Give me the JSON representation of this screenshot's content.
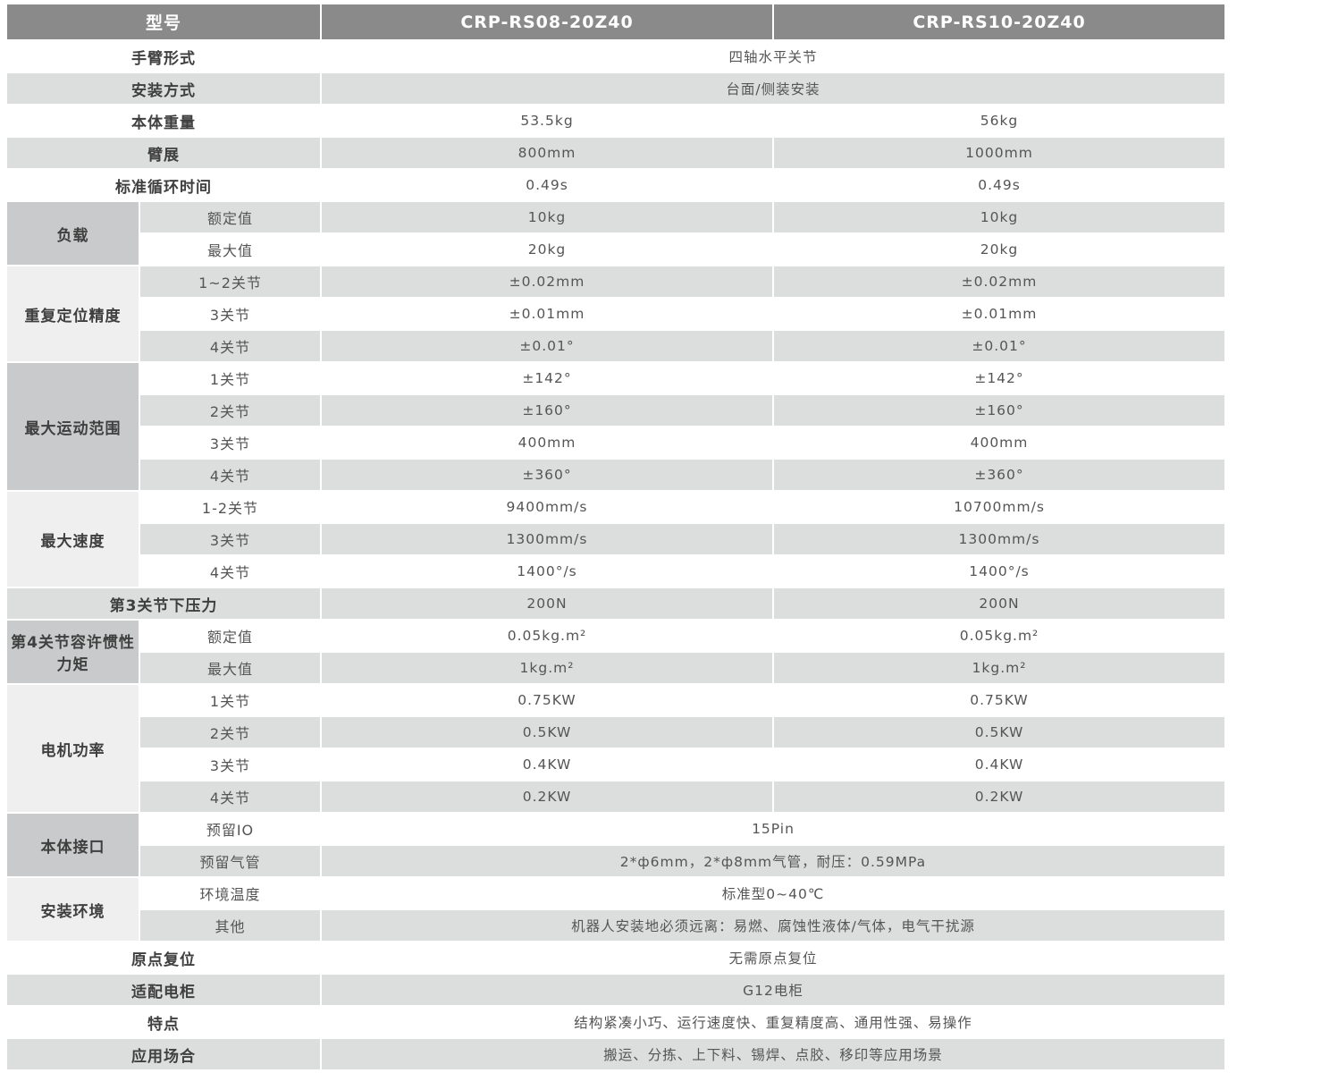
{
  "header": {
    "label": "型号",
    "models": [
      "CRP-RS08-20Z40",
      "CRP-RS10-20Z40"
    ]
  },
  "colors": {
    "header_bg": "#8a8a8a",
    "stripe_gray": "#dcdddd",
    "group_dark": "#c9cacb",
    "group_light": "#efefef"
  },
  "rows": [
    {
      "label": "手臂形式",
      "value": "四轴水平关节"
    },
    {
      "label": "安装方式",
      "value": "台面/侧装安装"
    },
    {
      "label": "本体重量",
      "values": [
        "53.5kg",
        "56kg"
      ]
    },
    {
      "label": "臂展",
      "values": [
        "800mm",
        "1000mm"
      ]
    },
    {
      "label": "标准循环时间",
      "values": [
        "0.49s",
        "0.49s"
      ]
    },
    {
      "label": "负载",
      "items": [
        {
          "sub": "额定值",
          "values": [
            "10kg",
            "10kg"
          ]
        },
        {
          "sub": "最大值",
          "values": [
            "20kg",
            "20kg"
          ]
        }
      ]
    },
    {
      "label": "重复定位精度",
      "items": [
        {
          "sub": "1~2关节",
          "values": [
            "±0.02mm",
            "±0.02mm"
          ]
        },
        {
          "sub": "3关节",
          "values": [
            "±0.01mm",
            "±0.01mm"
          ]
        },
        {
          "sub": "4关节",
          "values": [
            "±0.01°",
            "±0.01°"
          ]
        }
      ]
    },
    {
      "label": "最大运动范围",
      "items": [
        {
          "sub": "1关节",
          "values": [
            "±142°",
            "±142°"
          ]
        },
        {
          "sub": "2关节",
          "values": [
            "±160°",
            "±160°"
          ]
        },
        {
          "sub": "3关节",
          "values": [
            "400mm",
            "400mm"
          ]
        },
        {
          "sub": "4关节",
          "values": [
            "±360°",
            "±360°"
          ]
        }
      ]
    },
    {
      "label": "最大速度",
      "items": [
        {
          "sub": "1-2关节",
          "values": [
            "9400mm/s",
            "10700mm/s"
          ]
        },
        {
          "sub": "3关节",
          "values": [
            "1300mm/s",
            "1300mm/s"
          ]
        },
        {
          "sub": "4关节",
          "values": [
            "1400°/s",
            "1400°/s"
          ]
        }
      ]
    },
    {
      "label": "第3关节下压力",
      "values": [
        "200N",
        "200N"
      ]
    },
    {
      "label": "第4关节容许惯性力矩",
      "items": [
        {
          "sub": "额定值",
          "values": [
            "0.05kg.m²",
            "0.05kg.m²"
          ]
        },
        {
          "sub": "最大值",
          "values": [
            "1kg.m²",
            "1kg.m²"
          ]
        }
      ]
    },
    {
      "label": "电机功率",
      "items": [
        {
          "sub": "1关节",
          "values": [
            "0.75KW",
            "0.75KW"
          ]
        },
        {
          "sub": "2关节",
          "values": [
            "0.5KW",
            "0.5KW"
          ]
        },
        {
          "sub": "3关节",
          "values": [
            "0.4KW",
            "0.4KW"
          ]
        },
        {
          "sub": "4关节",
          "values": [
            "0.2KW",
            "0.2KW"
          ]
        }
      ]
    },
    {
      "label": "本体接口",
      "items": [
        {
          "sub": "预留IO",
          "value": "15Pin"
        },
        {
          "sub": "预留气管",
          "value": "2*ф6mm，2*ф8mm气管，耐压：0.59MPa"
        }
      ]
    },
    {
      "label": "安装环境",
      "items": [
        {
          "sub": "环境温度",
          "value": "标准型0~40℃"
        },
        {
          "sub": "其他",
          "value": "机器人安装地必须远离：易燃、腐蚀性液体/气体，电气干扰源"
        }
      ]
    },
    {
      "label": "原点复位",
      "value": "无需原点复位"
    },
    {
      "label": "适配电柜",
      "value": "G12电柜"
    },
    {
      "label": "特点",
      "value": "结构紧凑小巧、运行速度快、重复精度高、通用性强、易操作"
    },
    {
      "label": "应用场合",
      "value": "搬运、分拣、上下料、锡焊、点胶、移印等应用场景"
    }
  ]
}
